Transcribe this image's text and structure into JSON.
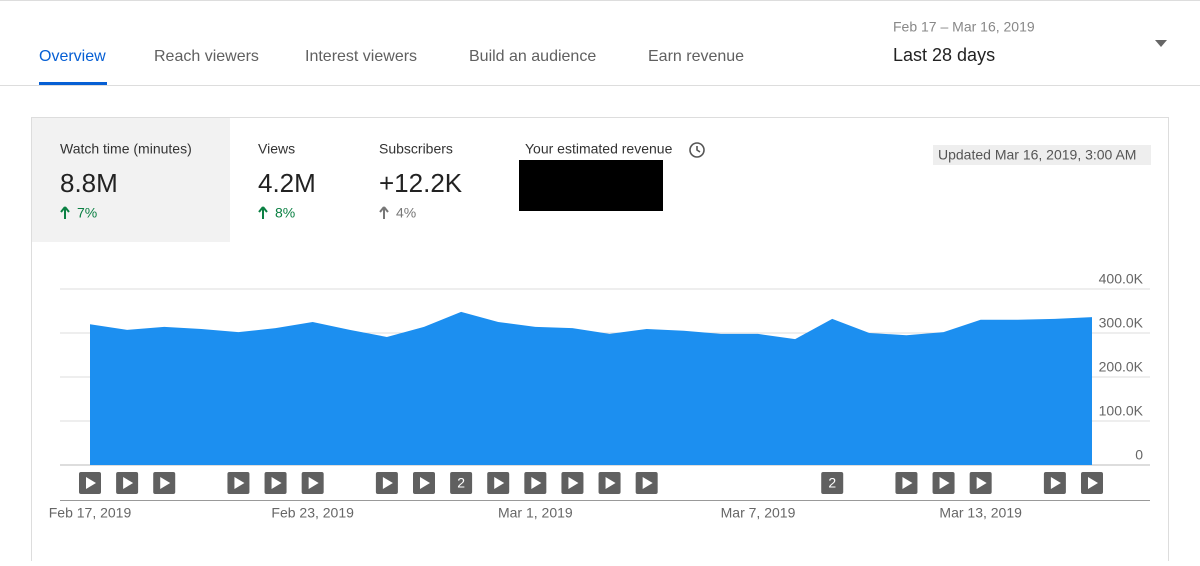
{
  "tabs": [
    "Overview",
    "Reach viewers",
    "Interest viewers",
    "Build an audience",
    "Earn revenue"
  ],
  "date_range": {
    "dates": "Feb 17 – Mar 16, 2019",
    "period": "Last 28 days"
  },
  "metrics": [
    {
      "label": "Watch time (minutes)",
      "value": "8.8M",
      "change": "7%"
    },
    {
      "label": "Views",
      "value": "4.2M",
      "change": "8%"
    },
    {
      "label": "Subscribers",
      "value": "+12.2K",
      "change": "4%"
    },
    {
      "label": "Your estimated revenue"
    }
  ],
  "updated": "Updated Mar 16, 2019, 3:00 AM",
  "chart_data": {
    "type": "area",
    "categories": [
      "Feb 17, 2019",
      null,
      null,
      null,
      null,
      null,
      "Feb 23, 2019",
      null,
      null,
      null,
      null,
      null,
      "Mar 1, 2019",
      null,
      null,
      null,
      null,
      null,
      "Mar 7, 2019",
      null,
      null,
      null,
      null,
      null,
      "Mar 13, 2019",
      null,
      null,
      null
    ],
    "values": [
      320000,
      307000,
      314000,
      309000,
      302000,
      311000,
      325000,
      307000,
      291000,
      314000,
      348000,
      325000,
      314000,
      311000,
      298000,
      309000,
      305000,
      298000,
      298000,
      286000,
      332000,
      300000,
      295000,
      302000,
      330000,
      330000,
      332000,
      336000
    ],
    "color": "#1c8ff0",
    "ylim": [
      0,
      400000
    ],
    "yticks": [
      0,
      {
        "value": 100000,
        "label": "100.0K"
      },
      {
        "value": 200000,
        "label": "200.0K"
      },
      {
        "value": 300000,
        "label": "300.0K"
      },
      {
        "value": 400000,
        "label": "400.0K"
      }
    ],
    "grid": true,
    "video_counts": [
      1,
      1,
      1,
      null,
      1,
      1,
      1,
      null,
      1,
      1,
      2,
      1,
      1,
      1,
      1,
      1,
      null,
      null,
      null,
      null,
      2,
      null,
      1,
      1,
      1,
      null,
      1,
      1
    ]
  }
}
